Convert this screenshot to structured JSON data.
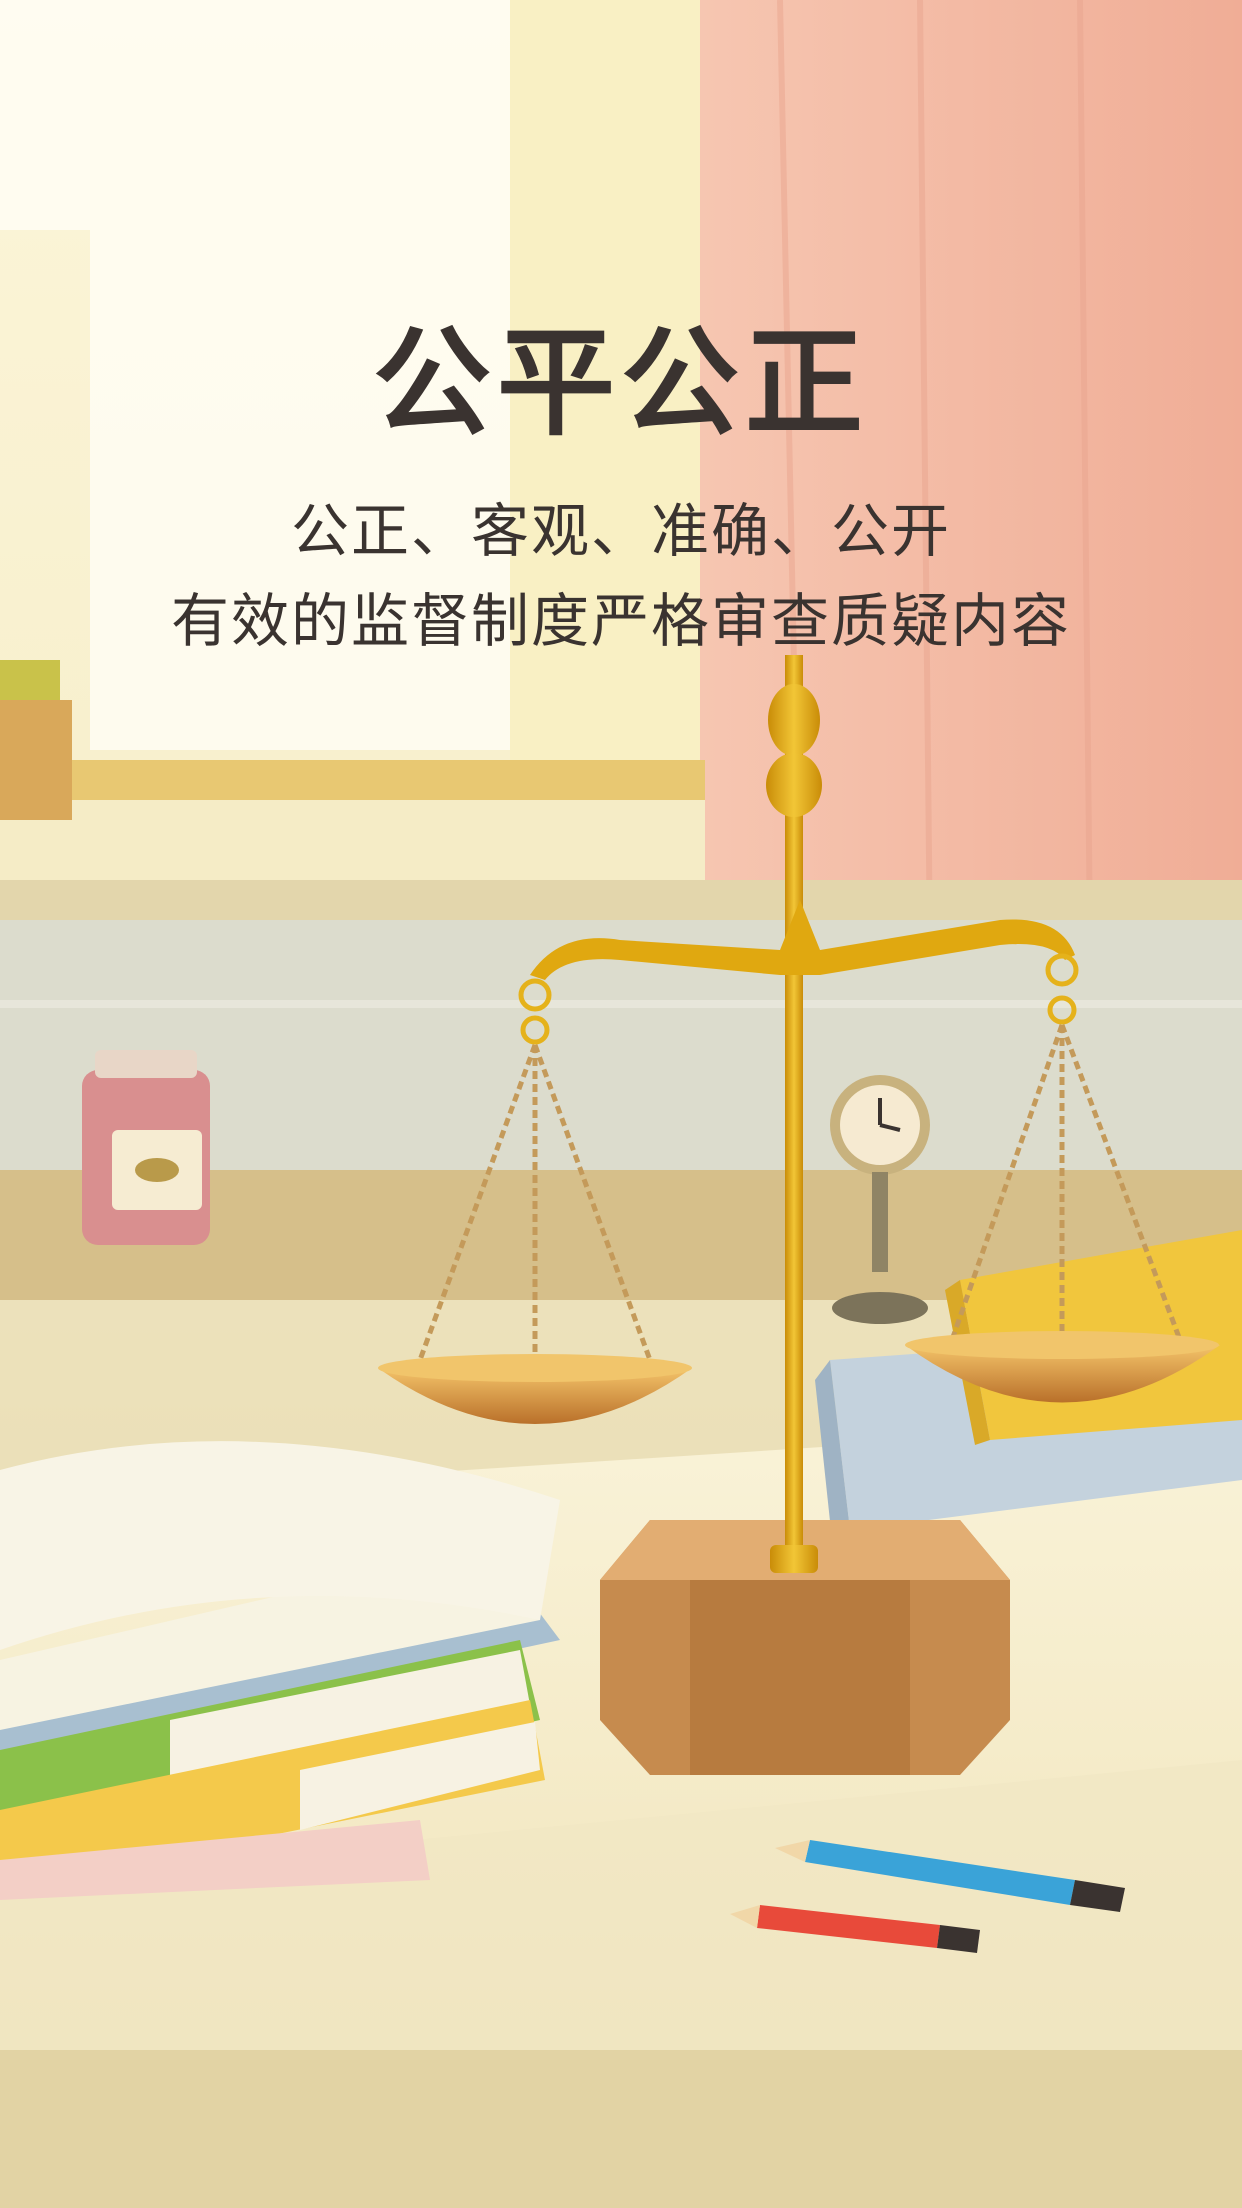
{
  "poster": {
    "title": "公平公正",
    "subtitle_line1": "公正、客观、准确、公开",
    "subtitle_line2": "有效的监督制度严格审查质疑内容"
  },
  "colors": {
    "background": "#f7efc8",
    "curtain": "#f3b9a3",
    "gold": "#e5b21b",
    "text": "#3a3330"
  }
}
